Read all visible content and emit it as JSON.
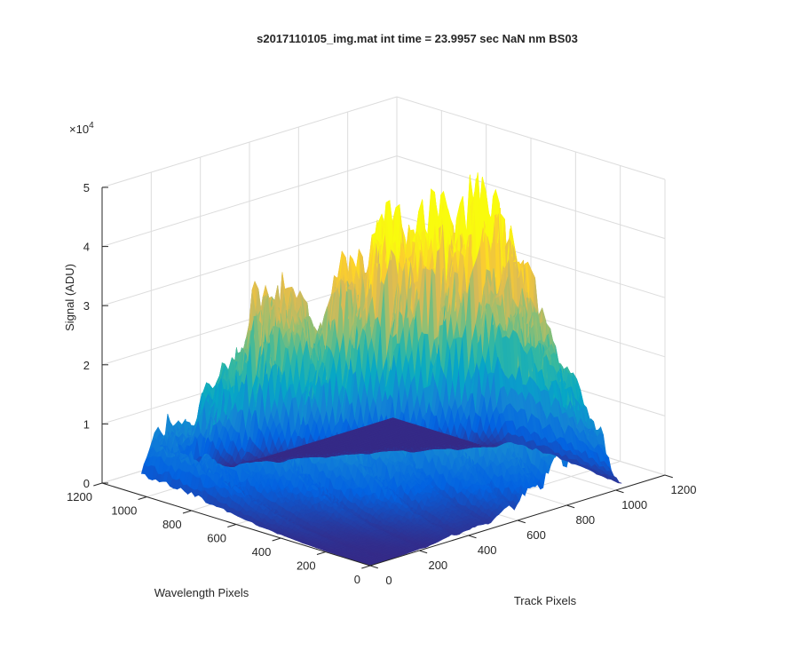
{
  "chart_data": {
    "type": "surface",
    "title": "s2017110105_img.mat int time = 23.9957 sec  NaN nm BS03",
    "xlabel": "Track Pixels",
    "ylabel": "Wavelength Pixels",
    "zlabel": "Signal (ADU)",
    "xlim": [
      0,
      1200
    ],
    "ylim": [
      0,
      1200
    ],
    "zlim": [
      0,
      50000
    ],
    "x_ticks": [
      "0",
      "200",
      "400",
      "600",
      "800",
      "1000",
      "1200"
    ],
    "y_ticks": [
      "0",
      "200",
      "400",
      "600",
      "800",
      "1000",
      "1200"
    ],
    "z_ticks": [
      "0",
      "1",
      "2",
      "3",
      "4",
      "5"
    ],
    "z_exponent_label": "×10",
    "z_exponent": "4",
    "x_data_range": [
      0,
      1024
    ],
    "y_data_range": [
      0,
      1024
    ],
    "grid": true,
    "colormap": "parula",
    "colormap_colors": [
      "#352a87",
      "#0363e1",
      "#1485d4",
      "#06a7c6",
      "#38b99e",
      "#92bf73",
      "#d9ba56",
      "#fcce2e",
      "#f9fb0e"
    ],
    "tracks": [
      {
        "center_x": 80,
        "peak_y": 1024,
        "peak_z": 12800
      },
      {
        "center_x": 230,
        "peak_y": 940,
        "peak_z": 20500
      },
      {
        "center_x": 360,
        "peak_y": 870,
        "peak_z": 34500
      },
      {
        "center_x": 485,
        "peak_y": 800,
        "peak_z": 23500
      },
      {
        "center_x": 590,
        "peak_y": 720,
        "peak_z": 34500
      },
      {
        "center_x": 700,
        "peak_y": 650,
        "peak_z": 38500
      },
      {
        "center_x": 805,
        "peak_y": 560,
        "peak_z": 37000
      },
      {
        "center_x": 905,
        "peak_y": 480,
        "peak_z": 37500
      }
    ]
  }
}
